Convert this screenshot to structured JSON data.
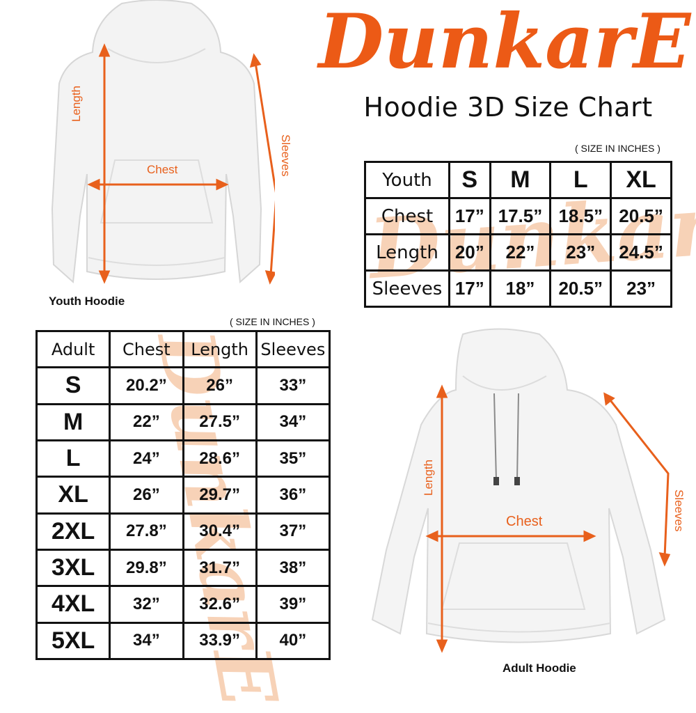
{
  "brand": {
    "logo_text": "DunkarE",
    "color": "#ec5a16",
    "watermark_color": "#f5c3a0"
  },
  "title": "Hoodie 3D Size Chart",
  "accent_color": "#e8601c",
  "youth": {
    "caption": "Youth Hoodie",
    "unit_note": "( SIZE IN INCHES )",
    "labels": {
      "length": "Length",
      "chest": "Chest",
      "sleeves": "Sleeves"
    },
    "table": {
      "corner": "Youth",
      "sizes": [
        "S",
        "M",
        "L",
        "XL"
      ],
      "rows": [
        {
          "label": "Chest",
          "values": [
            "17”",
            "17.5”",
            "18.5”",
            "20.5”"
          ]
        },
        {
          "label": "Length",
          "values": [
            "20”",
            "22”",
            "23”",
            "24.5”"
          ]
        },
        {
          "label": "Sleeves",
          "values": [
            "17”",
            "18”",
            "20.5”",
            "23”"
          ]
        }
      ]
    }
  },
  "adult": {
    "caption": "Adult Hoodie",
    "unit_note": "( SIZE IN INCHES )",
    "labels": {
      "length": "Length",
      "chest": "Chest",
      "sleeves": "Sleeves"
    },
    "table": {
      "headers": [
        "Adult",
        "Chest",
        "Length",
        "Sleeves"
      ],
      "rows": [
        {
          "size": "S",
          "values": [
            "20.2”",
            "26”",
            "33”"
          ]
        },
        {
          "size": "M",
          "values": [
            "22”",
            "27.5”",
            "34”"
          ]
        },
        {
          "size": "L",
          "values": [
            "24”",
            "28.6”",
            "35”"
          ]
        },
        {
          "size": "XL",
          "values": [
            "26”",
            "29.7”",
            "36”"
          ]
        },
        {
          "size": "2XL",
          "values": [
            "27.8”",
            "30.4”",
            "37”"
          ]
        },
        {
          "size": "3XL",
          "values": [
            "29.8”",
            "31.7”",
            "38”"
          ]
        },
        {
          "size": "4XL",
          "values": [
            "32”",
            "32.6”",
            "39”"
          ]
        },
        {
          "size": "5XL",
          "values": [
            "34”",
            "33.9”",
            "40”"
          ]
        }
      ]
    }
  }
}
